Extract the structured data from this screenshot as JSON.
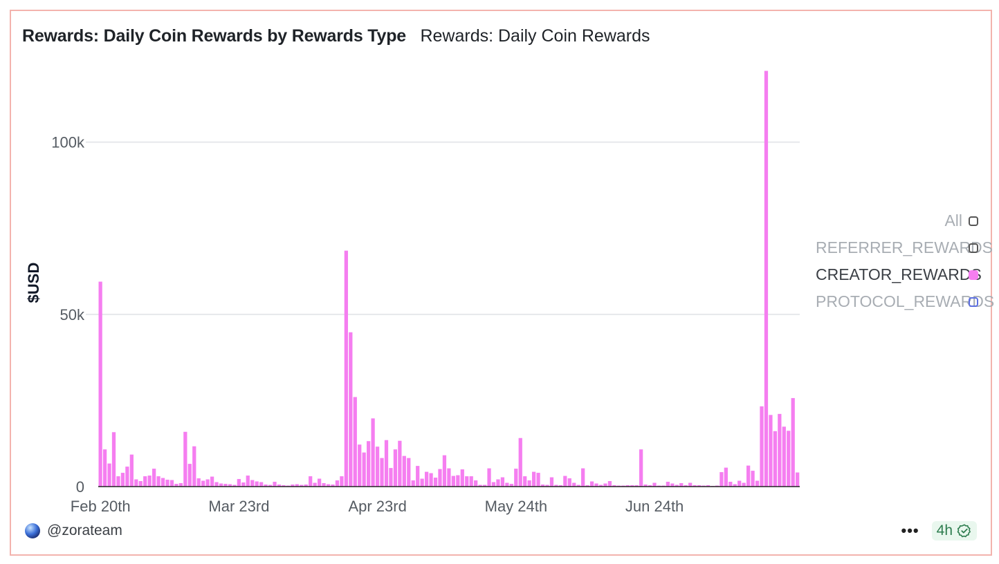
{
  "header": {
    "title": "Rewards: Daily Coin Rewards by Rewards Type",
    "subtitle": "Rewards: Daily Coin Rewards"
  },
  "legend": {
    "items": [
      {
        "label": "All",
        "color": "#555555",
        "active": false,
        "filled": false
      },
      {
        "label": "REFERRER_REWARDS",
        "color": "#555555",
        "active": false,
        "filled": false
      },
      {
        "label": "CREATOR_REWARDS",
        "color": "#f57ef0",
        "active": true,
        "filled": true
      },
      {
        "label": "PROTOCOL_REWARDS",
        "color": "#5b6ee1",
        "active": false,
        "filled": false
      }
    ]
  },
  "footer": {
    "author": "@zorateam",
    "avatar_icon": "globe-avatar",
    "more_icon": "ellipsis-icon",
    "freshness": "4h",
    "freshness_icon": "verified-check-icon",
    "freshness_color": "#2e7d4f"
  },
  "chart_data": {
    "type": "bar",
    "ylabel": "$USD",
    "xlabel": "",
    "ylim": [
      0,
      120000
    ],
    "yticks": [
      0,
      50000,
      100000
    ],
    "ytick_labels": [
      "0",
      "50k",
      "100k"
    ],
    "xtick_labels": [
      "Feb 20th",
      "Mar 23rd",
      "Apr 23rd",
      "May 24th",
      "Jun 24th"
    ],
    "xtick_indices": [
      0,
      31,
      62,
      93,
      124
    ],
    "grid": true,
    "legend_position": "right",
    "bar_color": "#f57ef0",
    "series": [
      {
        "name": "CREATOR_REWARDS",
        "values": [
          59500,
          10800,
          6700,
          15800,
          3000,
          4000,
          5800,
          9300,
          2100,
          1600,
          3000,
          3200,
          5200,
          3000,
          2500,
          2000,
          1900,
          800,
          1000,
          15900,
          6600,
          11700,
          2400,
          1700,
          2100,
          2900,
          1300,
          900,
          800,
          700,
          500,
          2200,
          1200,
          3200,
          1900,
          1500,
          1300,
          600,
          500,
          1400,
          600,
          400,
          300,
          600,
          700,
          500,
          600,
          3000,
          1100,
          2300,
          1000,
          700,
          600,
          1800,
          3000,
          68500,
          44800,
          26000,
          12200,
          9900,
          13200,
          19800,
          11600,
          8300,
          13500,
          5400,
          10800,
          13300,
          8900,
          8300,
          1800,
          6000,
          2300,
          4300,
          3900,
          2600,
          5100,
          9100,
          5300,
          3100,
          3300,
          5000,
          3000,
          3000,
          1800,
          500,
          500,
          5300,
          1300,
          2100,
          2700,
          1100,
          800,
          5200,
          14100,
          3000,
          1800,
          4300,
          4000,
          600,
          500,
          2700,
          500,
          400,
          3100,
          2400,
          1100,
          500,
          5300,
          400,
          1500,
          900,
          500,
          900,
          1600,
          400,
          300,
          300,
          400,
          400,
          400,
          10800,
          600,
          400,
          1100,
          300,
          300,
          1400,
          900,
          500,
          1000,
          400,
          1100,
          400,
          400,
          300,
          400,
          200,
          300,
          4200,
          5500,
          1400,
          700,
          1700,
          1100,
          6100,
          4600,
          1700,
          23300,
          120700,
          20800,
          16100,
          21100,
          17400,
          16200,
          25700,
          4100
        ]
      }
    ]
  }
}
